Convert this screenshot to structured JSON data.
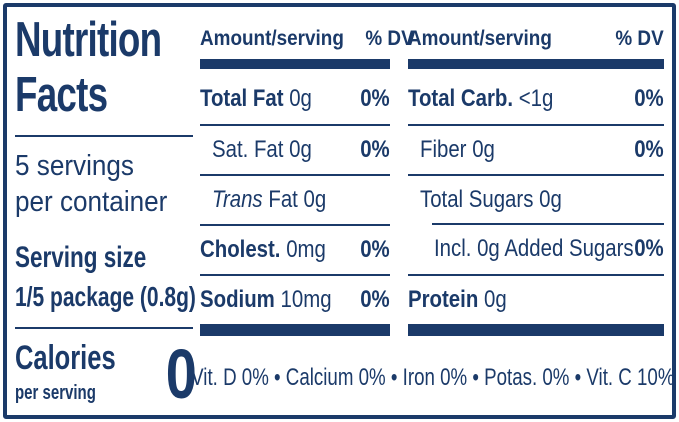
{
  "colors": {
    "navy": "#1b3a69",
    "background": "#ffffff"
  },
  "title": {
    "line1": "Nutrition",
    "line2": "Facts"
  },
  "servings": {
    "line1": "5 servings",
    "line2": "per container"
  },
  "serving_size": {
    "label": "Serving size",
    "value": "1/5 package (0.8g)"
  },
  "calories": {
    "label": "Calories",
    "sublabel": "per serving",
    "value": "0"
  },
  "table": {
    "header": {
      "amount": "Amount/serving",
      "dv": "% DV"
    },
    "columns": [
      {
        "rows": [
          {
            "name": "Total Fat",
            "amount": "0g",
            "dv": "0%"
          },
          {
            "name": "Sat. Fat",
            "amount": "0g",
            "dv": "0%"
          },
          {
            "name": "Trans",
            "amount": "Fat 0g",
            "dv": ""
          },
          {
            "name": "Cholest.",
            "amount": "0mg",
            "dv": "0%"
          },
          {
            "name": "Sodium",
            "amount": "10mg",
            "dv": "0%"
          }
        ]
      },
      {
        "rows": [
          {
            "name": "Total Carb.",
            "amount": "<1g",
            "dv": "0%"
          },
          {
            "name": "Fiber",
            "amount": "0g",
            "dv": "0%"
          },
          {
            "name": "Total Sugars",
            "amount": "0g",
            "dv": ""
          },
          {
            "name": "Incl. 0g Added Sugars",
            "amount": "",
            "dv": "0%"
          },
          {
            "name": "Protein",
            "amount": "0g",
            "dv": ""
          }
        ]
      }
    ]
  },
  "micronutrients": "Vit. D 0% • Calcium 0% • Iron 0% • Potas. 0% • Vit. C 10%"
}
